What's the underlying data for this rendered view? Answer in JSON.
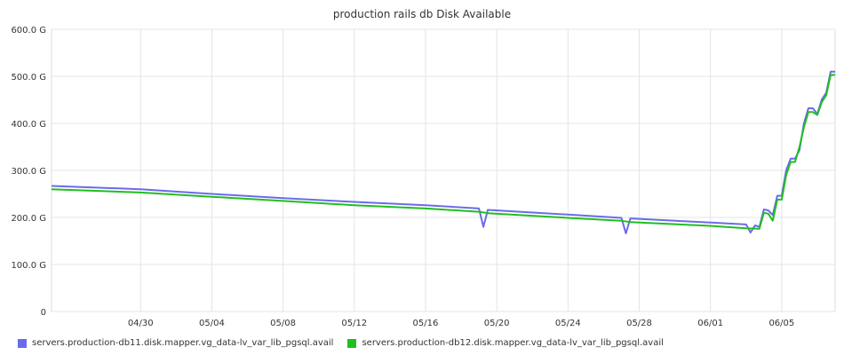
{
  "chart_data": {
    "type": "line",
    "title": "production rails db Disk Available",
    "xlabel": "",
    "ylabel": "",
    "y_unit": "G",
    "ylim": [
      0,
      600
    ],
    "xlim": [
      "2014-04-25",
      "2014-06-08"
    ],
    "y_ticks": [
      {
        "value": 0,
        "label": "0"
      },
      {
        "value": 100,
        "label": "100.0 G"
      },
      {
        "value": 200,
        "label": "200.0 G"
      },
      {
        "value": 300,
        "label": "300.0 G"
      },
      {
        "value": 400,
        "label": "400.0 G"
      },
      {
        "value": 500,
        "label": "500.0 G"
      },
      {
        "value": 600,
        "label": "600.0 G"
      }
    ],
    "x_ticks": [
      {
        "date": "2014-04-30",
        "label": "04/30"
      },
      {
        "date": "2014-05-04",
        "label": "05/04"
      },
      {
        "date": "2014-05-08",
        "label": "05/08"
      },
      {
        "date": "2014-05-12",
        "label": "05/12"
      },
      {
        "date": "2014-05-16",
        "label": "05/16"
      },
      {
        "date": "2014-05-20",
        "label": "05/20"
      },
      {
        "date": "2014-05-24",
        "label": "05/24"
      },
      {
        "date": "2014-05-28",
        "label": "05/28"
      },
      {
        "date": "2014-06-01",
        "label": "06/01"
      },
      {
        "date": "2014-06-05",
        "label": "06/05"
      }
    ],
    "grid": true,
    "legend_position": "bottom-left",
    "series": [
      {
        "name": "servers.production-db11.disk.mapper.vg_data-lv_var_lib_pgsql.avail",
        "color": "#6b6bea",
        "points": [
          [
            "2014-04-25 00:00",
            267
          ],
          [
            "2014-04-30 00:00",
            260
          ],
          [
            "2014-05-04 00:00",
            250
          ],
          [
            "2014-05-08 00:00",
            241
          ],
          [
            "2014-05-12 00:00",
            233
          ],
          [
            "2014-05-16 00:00",
            226
          ],
          [
            "2014-05-19 00:00",
            219
          ],
          [
            "2014-05-19 06:00",
            180
          ],
          [
            "2014-05-19 12:00",
            216
          ],
          [
            "2014-05-24 00:00",
            206
          ],
          [
            "2014-05-27 00:00",
            199
          ],
          [
            "2014-05-27 06:00",
            166
          ],
          [
            "2014-05-27 12:00",
            198
          ],
          [
            "2014-06-01 00:00",
            189
          ],
          [
            "2014-06-03 00:00",
            185
          ],
          [
            "2014-06-03 06:00",
            168
          ],
          [
            "2014-06-03 12:00",
            183
          ],
          [
            "2014-06-03 18:00",
            180
          ],
          [
            "2014-06-04 00:00",
            217
          ],
          [
            "2014-06-04 06:00",
            215
          ],
          [
            "2014-06-04 12:00",
            205
          ],
          [
            "2014-06-04 18:00",
            246
          ],
          [
            "2014-06-05 00:00",
            246
          ],
          [
            "2014-06-05 06:00",
            300
          ],
          [
            "2014-06-05 12:00",
            325
          ],
          [
            "2014-06-05 18:00",
            325
          ],
          [
            "2014-06-06 00:00",
            343
          ],
          [
            "2014-06-06 06:00",
            400
          ],
          [
            "2014-06-06 12:00",
            432
          ],
          [
            "2014-06-06 18:00",
            432
          ],
          [
            "2014-06-07 00:00",
            420
          ],
          [
            "2014-06-07 06:00",
            451
          ],
          [
            "2014-06-07 12:00",
            465
          ],
          [
            "2014-06-07 18:00",
            510
          ],
          [
            "2014-06-08 00:00",
            510
          ]
        ]
      },
      {
        "name": "servers.production-db12.disk.mapper.vg_data-lv_var_lib_pgsql.avail",
        "color": "#1fbf1f",
        "points": [
          [
            "2014-04-25 00:00",
            260
          ],
          [
            "2014-04-30 00:00",
            253
          ],
          [
            "2014-05-04 00:00",
            244
          ],
          [
            "2014-05-08 00:00",
            235
          ],
          [
            "2014-05-12 00:00",
            226
          ],
          [
            "2014-05-16 00:00",
            219
          ],
          [
            "2014-05-19 00:00",
            212
          ],
          [
            "2014-05-19 12:00",
            209
          ],
          [
            "2014-05-24 00:00",
            199
          ],
          [
            "2014-05-27 00:00",
            193
          ],
          [
            "2014-05-27 12:00",
            190
          ],
          [
            "2014-06-01 00:00",
            182
          ],
          [
            "2014-06-03 00:00",
            177
          ],
          [
            "2014-06-03 18:00",
            176
          ],
          [
            "2014-06-04 00:00",
            210
          ],
          [
            "2014-06-04 06:00",
            208
          ],
          [
            "2014-06-04 12:00",
            193
          ],
          [
            "2014-06-04 18:00",
            238
          ],
          [
            "2014-06-05 00:00",
            238
          ],
          [
            "2014-06-05 06:00",
            290
          ],
          [
            "2014-06-05 12:00",
            318
          ],
          [
            "2014-06-05 18:00",
            318
          ],
          [
            "2014-06-06 00:00",
            350
          ],
          [
            "2014-06-06 06:00",
            392
          ],
          [
            "2014-06-06 12:00",
            424
          ],
          [
            "2014-06-06 18:00",
            424
          ],
          [
            "2014-06-07 00:00",
            418
          ],
          [
            "2014-06-07 06:00",
            445
          ],
          [
            "2014-06-07 12:00",
            460
          ],
          [
            "2014-06-07 18:00",
            503
          ],
          [
            "2014-06-08 00:00",
            503
          ]
        ]
      }
    ]
  }
}
